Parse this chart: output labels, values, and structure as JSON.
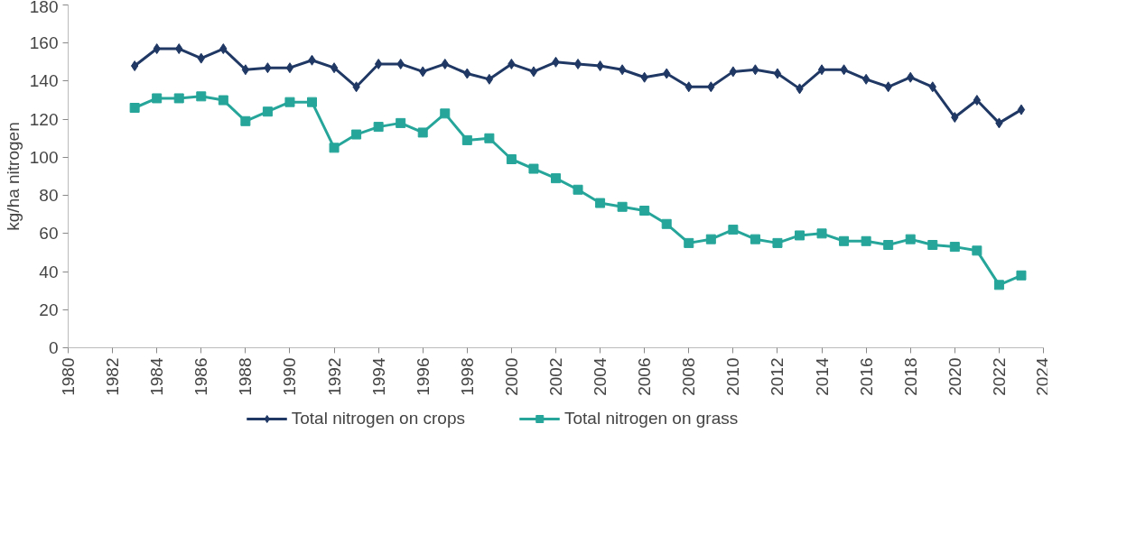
{
  "chart_data": {
    "type": "line",
    "ylabel": "kg/ha nitrogen",
    "x": [
      1983,
      1984,
      1985,
      1986,
      1987,
      1988,
      1989,
      1990,
      1991,
      1992,
      1993,
      1994,
      1995,
      1996,
      1997,
      1998,
      1999,
      2000,
      2001,
      2002,
      2003,
      2004,
      2005,
      2006,
      2007,
      2008,
      2009,
      2010,
      2011,
      2012,
      2013,
      2014,
      2015,
      2016,
      2017,
      2018,
      2019,
      2020,
      2021,
      2022,
      2023
    ],
    "series": [
      {
        "name": "Total nitrogen on crops",
        "color": "#1f3864",
        "marker": "diamond",
        "values": [
          148,
          157,
          157,
          152,
          157,
          146,
          147,
          147,
          151,
          147,
          137,
          149,
          149,
          145,
          149,
          144,
          141,
          149,
          145,
          150,
          149,
          148,
          146,
          142,
          144,
          137,
          137,
          145,
          146,
          144,
          136,
          146,
          146,
          141,
          137,
          142,
          137,
          121,
          130,
          118,
          125
        ]
      },
      {
        "name": "Total nitrogen on grass",
        "color": "#26a69a",
        "marker": "square",
        "values": [
          126,
          131,
          131,
          132,
          130,
          119,
          124,
          129,
          129,
          105,
          112,
          116,
          118,
          113,
          123,
          109,
          110,
          99,
          94,
          89,
          83,
          76,
          74,
          72,
          65,
          55,
          57,
          62,
          57,
          55,
          59,
          60,
          56,
          56,
          54,
          57,
          54,
          53,
          51,
          33,
          38
        ]
      }
    ],
    "xlim": [
      1980,
      2024
    ],
    "xticks": [
      1980,
      1982,
      1984,
      1986,
      1988,
      1990,
      1992,
      1994,
      1996,
      1998,
      2000,
      2002,
      2004,
      2006,
      2008,
      2010,
      2012,
      2014,
      2016,
      2018,
      2020,
      2022,
      2024
    ],
    "ylim": [
      0,
      180
    ],
    "yticks": [
      0,
      20,
      40,
      60,
      80,
      100,
      120,
      140,
      160,
      180
    ],
    "grid": false,
    "legend": "bottom",
    "line_style": "solid"
  }
}
